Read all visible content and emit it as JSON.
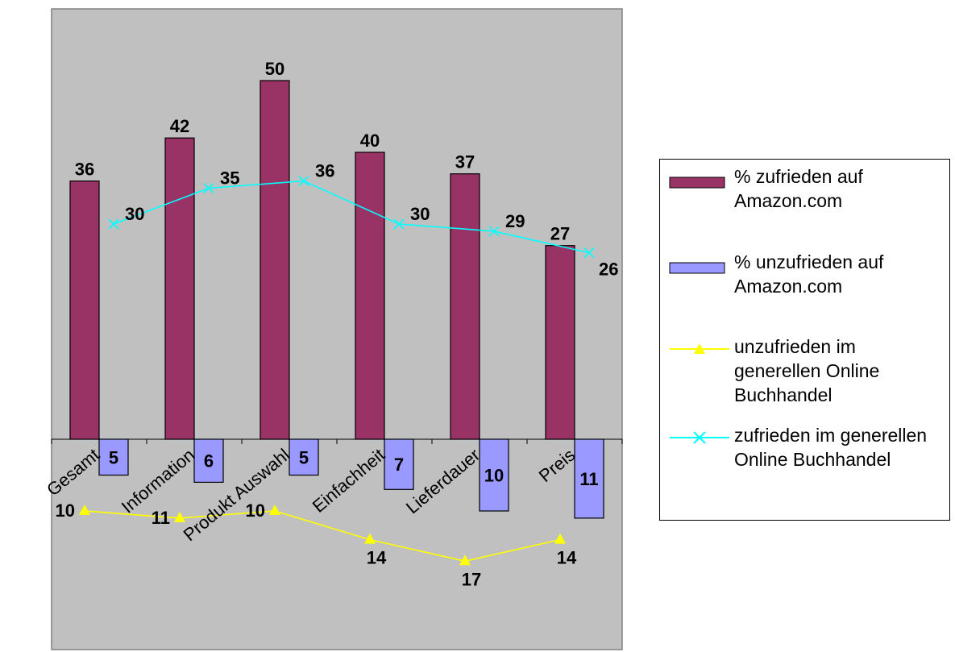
{
  "chart_data": {
    "type": "bar",
    "categories": [
      "Gesamt",
      "Information",
      "Produkt Auswahl",
      "Einfachheit",
      "Lieferdauer",
      "Preis"
    ],
    "ylim": [
      -40,
      50
    ],
    "series": [
      {
        "name": "%  zufrieden auf Amazon.com",
        "type": "bar",
        "color": "#993366",
        "values": [
          36,
          42,
          50,
          40,
          37,
          27
        ],
        "labels": [
          "36",
          "42",
          "50",
          "40",
          "37",
          "27"
        ]
      },
      {
        "name": "% unzufrieden auf Amazon.com",
        "type": "bar",
        "color": "#9999ff",
        "values": [
          -5,
          -6,
          -5,
          -7,
          -10,
          -11
        ],
        "labels": [
          "5",
          "6",
          "5",
          "7",
          "10",
          "11"
        ]
      },
      {
        "name": "unzufrieden im generellen Online Buchhandel",
        "type": "line",
        "marker": "triangle",
        "color": "#ffff00",
        "values": [
          -10,
          -11,
          -10,
          -14,
          -17,
          -14
        ],
        "labels": [
          "10",
          "11",
          "10",
          "14",
          "17",
          "14"
        ]
      },
      {
        "name": "zufrieden im generellen Online Buchhandel",
        "type": "line",
        "marker": "x",
        "color": "#00ffff",
        "values": [
          30,
          35,
          36,
          30,
          29,
          26
        ],
        "labels": [
          "30",
          "35",
          "36",
          "30",
          "29",
          "26"
        ]
      }
    ],
    "plot_background": "#c0c0c0",
    "grid": false,
    "legend": "right"
  }
}
